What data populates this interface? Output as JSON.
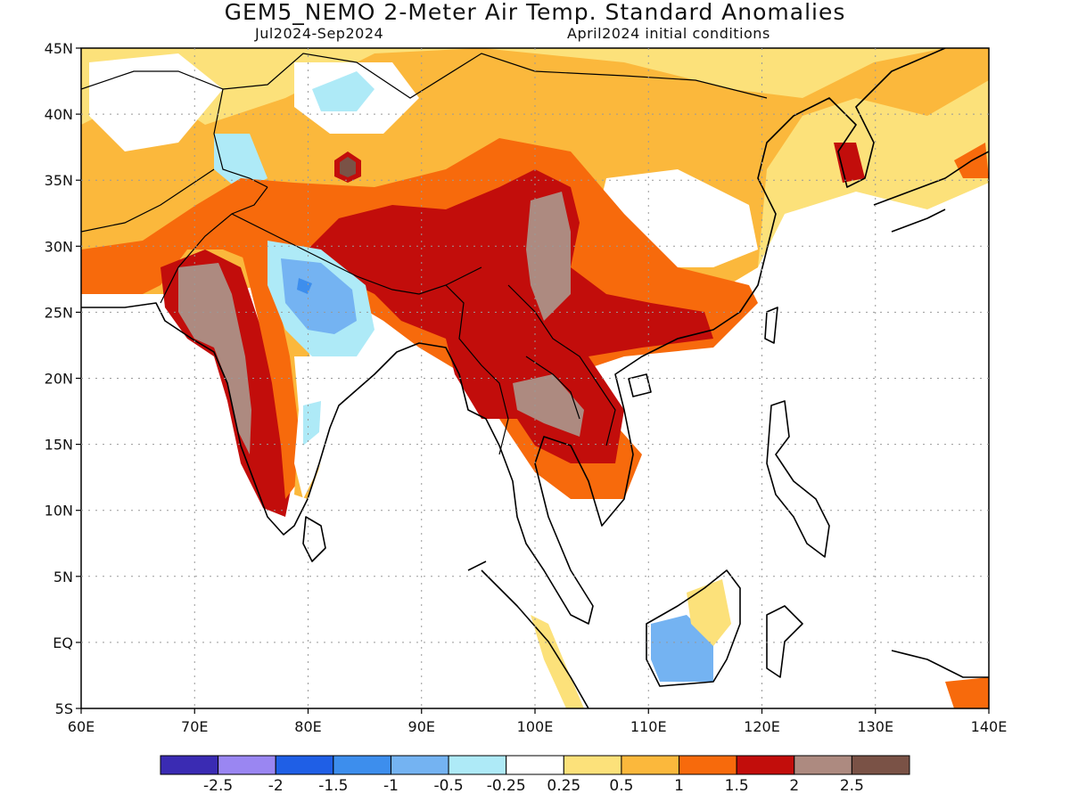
{
  "map": {
    "title": "GEM5_NEMO 2-Meter Air Temp. Standard Anomalies",
    "period": "Jul2024-Sep2024",
    "initial_conditions": "April2024 initial conditions",
    "lat_labels": [
      "45N",
      "40N",
      "35N",
      "30N",
      "25N",
      "20N",
      "15N",
      "10N",
      "5N",
      "EQ",
      "5S"
    ],
    "lon_labels": [
      "60E",
      "70E",
      "80E",
      "90E",
      "100E",
      "110E",
      "120E",
      "130E",
      "140E"
    ],
    "lat_range": [
      -5,
      45
    ],
    "lon_range": [
      60,
      140
    ]
  },
  "colorbar": {
    "labels": [
      "-2.5",
      "-2",
      "-1.5",
      "-1",
      "-0.5",
      "-0.25",
      "0.25",
      "0.5",
      "1",
      "1.5",
      "2",
      "2.5"
    ],
    "colors": [
      "#3a2bb3",
      "#9a86f2",
      "#1f5fe6",
      "#3d8eed",
      "#74b3f2",
      "#aeeaf7",
      "#ffffff",
      "#fce17a",
      "#fbb83c",
      "#f76a0c",
      "#c20d0b",
      "#ad8a80",
      "#7a5246"
    ]
  },
  "palette": {
    "light_yellow": "#fce17a",
    "yellow_orange": "#fbb83c",
    "orange": "#f76a0c",
    "red": "#c20d0b",
    "brown_light": "#ad8a80",
    "brown_dark": "#7a5246",
    "blue_light": "#aeeaf7",
    "blue_mid": "#74b3f2",
    "blue_dark": "#3d8eed"
  }
}
